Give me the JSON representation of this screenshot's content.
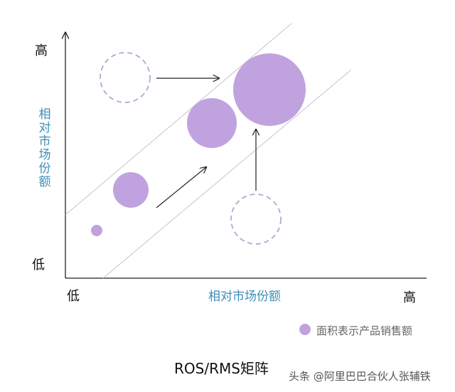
{
  "axes": {
    "y_high": "高",
    "y_low": "低",
    "y_label": "相对市场份额",
    "x_low": "低",
    "x_label": "相对市场份额",
    "x_high": "高",
    "label_color": "#3a8fb7"
  },
  "bubble_color": "#c0a3de",
  "dashed_color": "#b3a7d1",
  "legend": {
    "label": "面积表示产品销售额"
  },
  "title": "ROS/RMS矩阵",
  "watermark": "头条 @阿里巴巴合伙人张辅铁"
}
